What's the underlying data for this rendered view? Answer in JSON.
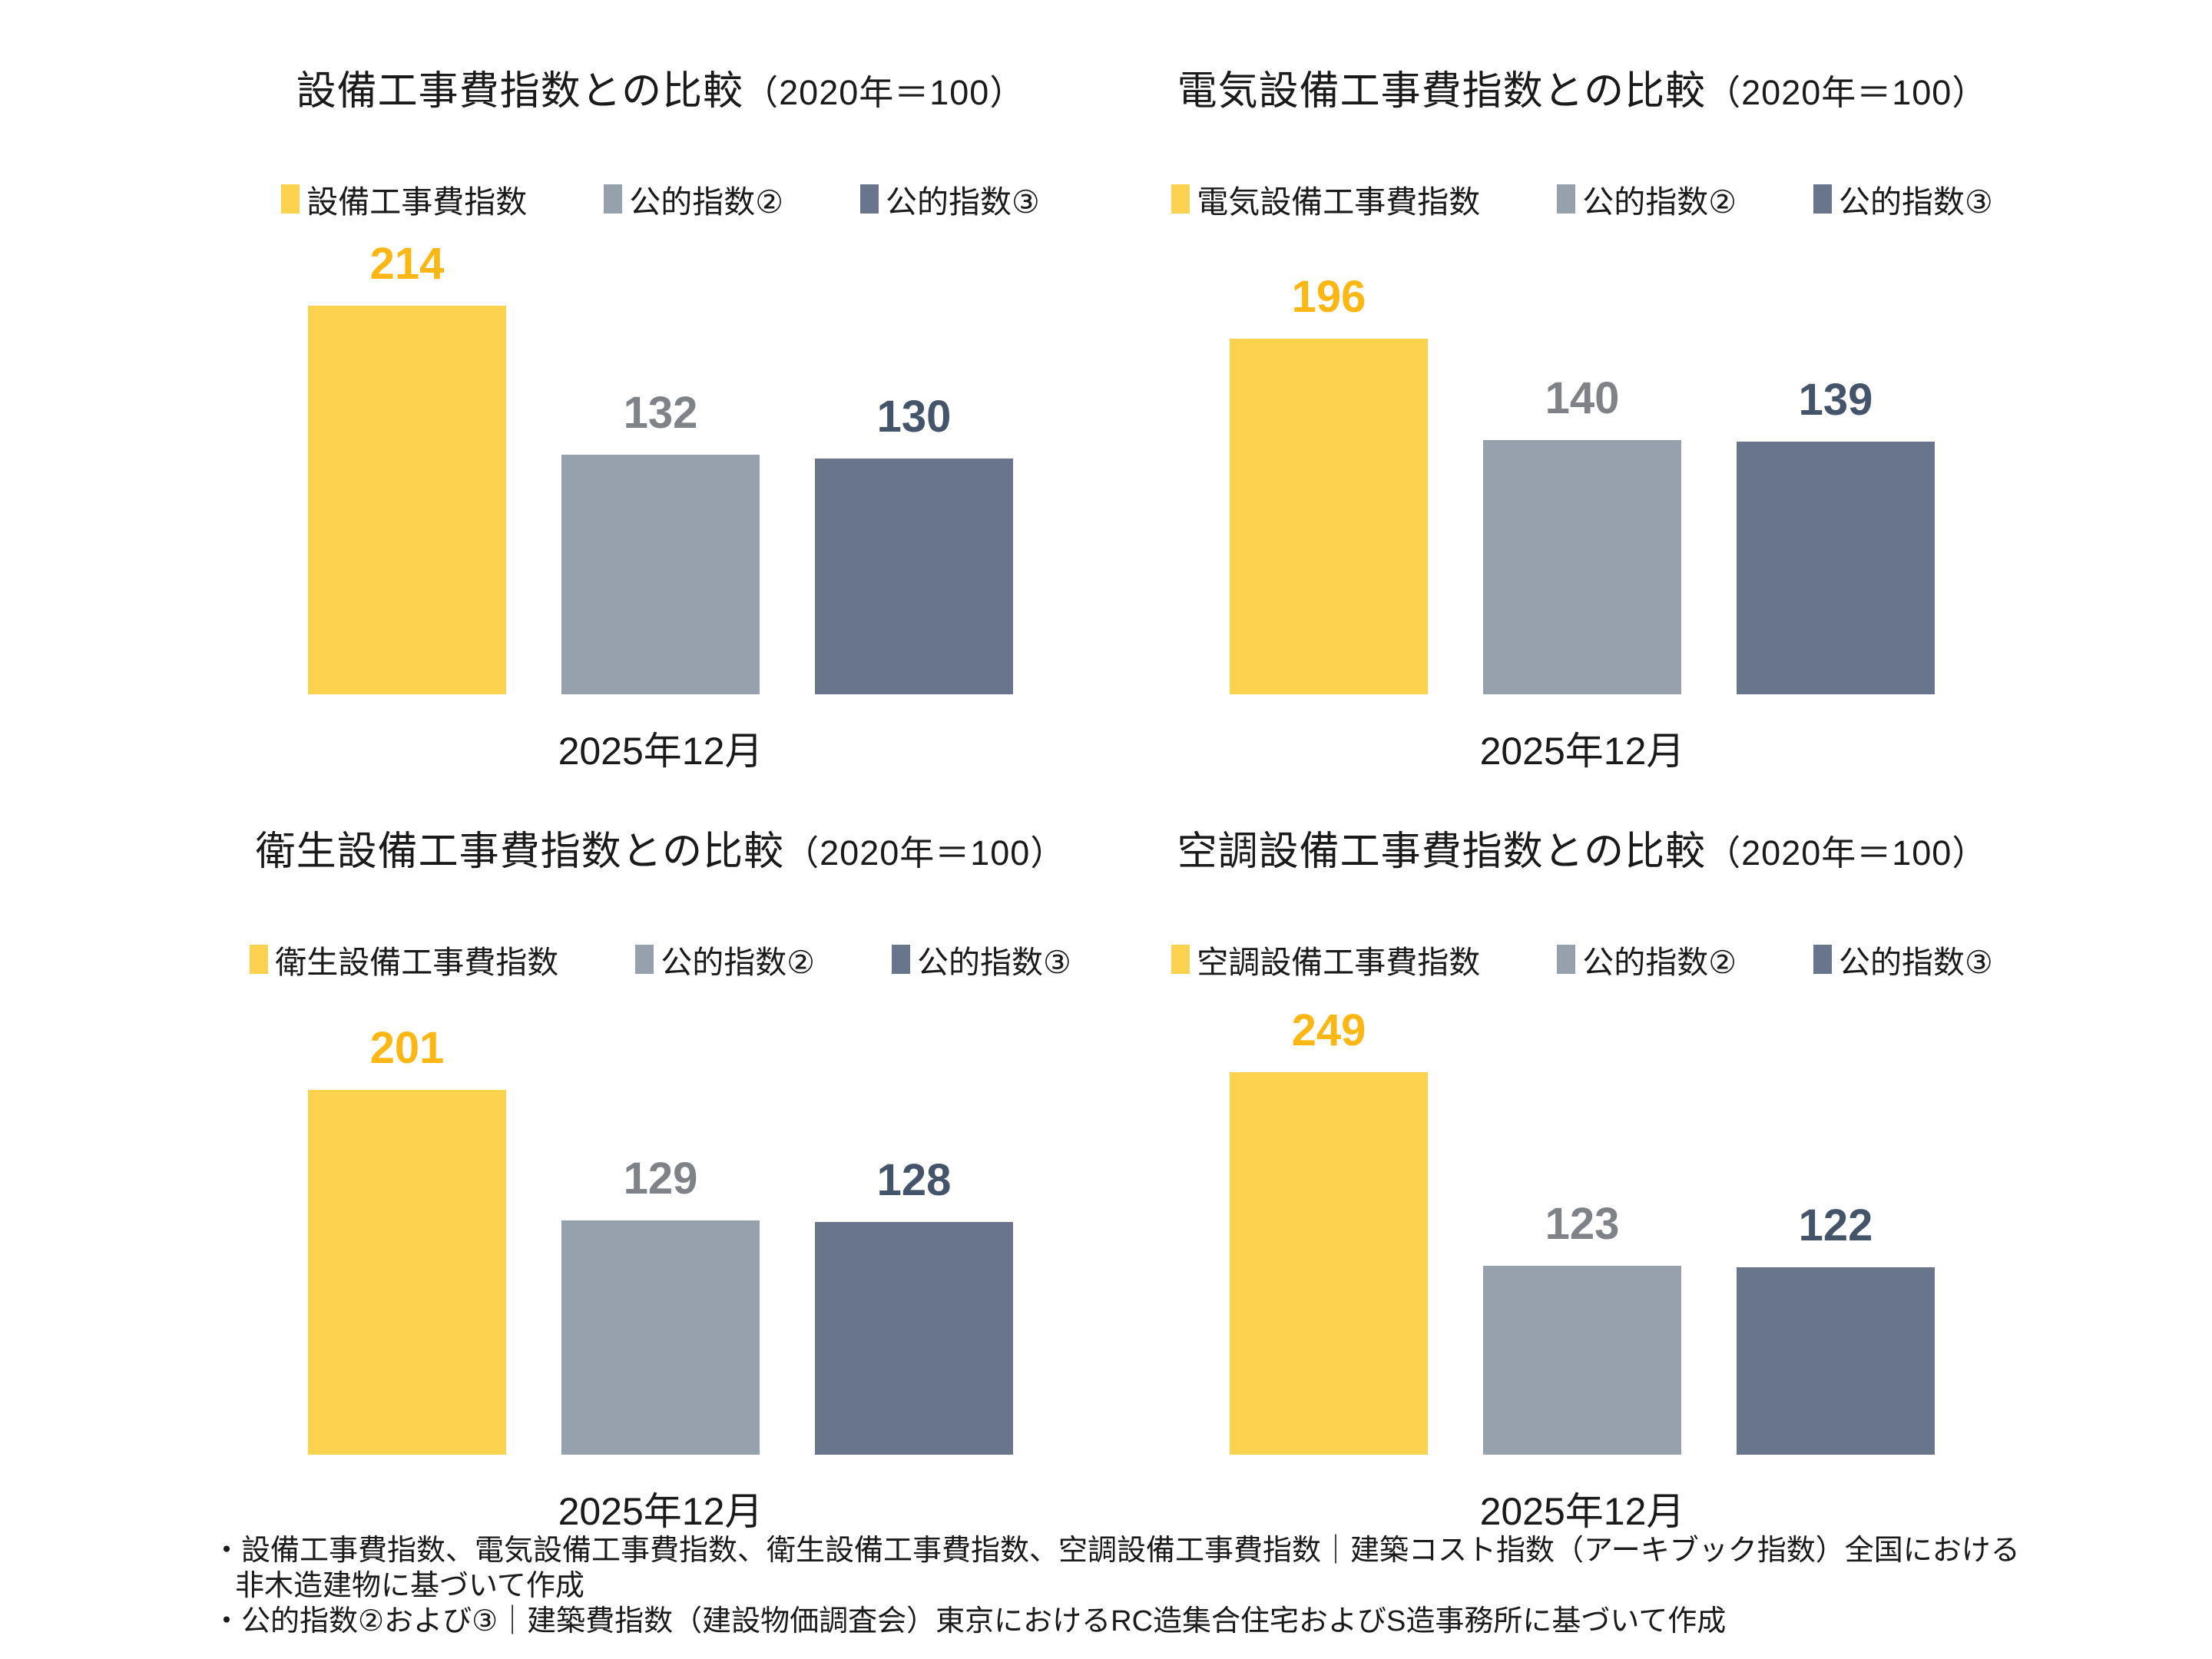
{
  "colors": {
    "yellow": {
      "bar": "#FCD24E",
      "label": "#FDB714"
    },
    "gray_light": {
      "bar": "#97A0AD",
      "label": "#7F8287"
    },
    "gray_dark": {
      "bar": "#68758A",
      "label": "#44546A"
    }
  },
  "chart_data": [
    {
      "type": "bar",
      "title": "設備工事費指数との比較",
      "title_suffix": "（2020年＝100）",
      "categories": [
        "2025年12月"
      ],
      "xlabel": "2025年12月",
      "ylim": [
        0,
        220
      ],
      "grid": false,
      "legend_position": "top",
      "series": [
        {
          "name": "設備工事費指数",
          "value": 214,
          "color_key": "yellow"
        },
        {
          "name": "公的指数②",
          "value": 132,
          "color_key": "gray_light"
        },
        {
          "name": "公的指数③",
          "value": 130,
          "color_key": "gray_dark"
        }
      ]
    },
    {
      "type": "bar",
      "title": "電気設備工事費指数との比較",
      "title_suffix": "（2020年＝100）",
      "categories": [
        "2025年12月"
      ],
      "xlabel": "2025年12月",
      "ylim": [
        0,
        220
      ],
      "grid": false,
      "legend_position": "top",
      "series": [
        {
          "name": "電気設備工事費指数",
          "value": 196,
          "color_key": "yellow"
        },
        {
          "name": "公的指数②",
          "value": 140,
          "color_key": "gray_light"
        },
        {
          "name": "公的指数③",
          "value": 139,
          "color_key": "gray_dark"
        }
      ]
    },
    {
      "type": "bar",
      "title": "衛生設備工事費指数との比較",
      "title_suffix": "（2020年＝100）",
      "categories": [
        "2025年12月"
      ],
      "xlabel": "2025年12月",
      "ylim": [
        0,
        220
      ],
      "grid": false,
      "legend_position": "top",
      "series": [
        {
          "name": "衛生設備工事費指数",
          "value": 201,
          "color_key": "yellow"
        },
        {
          "name": "公的指数②",
          "value": 129,
          "color_key": "gray_light"
        },
        {
          "name": "公的指数③",
          "value": 128,
          "color_key": "gray_dark"
        }
      ]
    },
    {
      "type": "bar",
      "title": "空調設備工事費指数との比較",
      "title_suffix": "（2020年＝100）",
      "categories": [
        "2025年12月"
      ],
      "xlabel": "2025年12月",
      "ylim": [
        0,
        260
      ],
      "grid": false,
      "legend_position": "top",
      "series": [
        {
          "name": "空調設備工事費指数",
          "value": 249,
          "color_key": "yellow"
        },
        {
          "name": "公的指数②",
          "value": 123,
          "color_key": "gray_light"
        },
        {
          "name": "公的指数③",
          "value": 122,
          "color_key": "gray_dark"
        }
      ]
    }
  ],
  "footer": {
    "lines": [
      "・設備工事費指数、電気設備工事費指数、衛生設備工事費指数、空調設備工事費指数｜建築コスト指数（アーキブック指数）全国における",
      "非木造建物に基づいて作成",
      "・公的指数②および③｜建築費指数（建設物価調査会）東京におけるRC造集合住宅およびS造事務所に基づいて作成"
    ]
  }
}
